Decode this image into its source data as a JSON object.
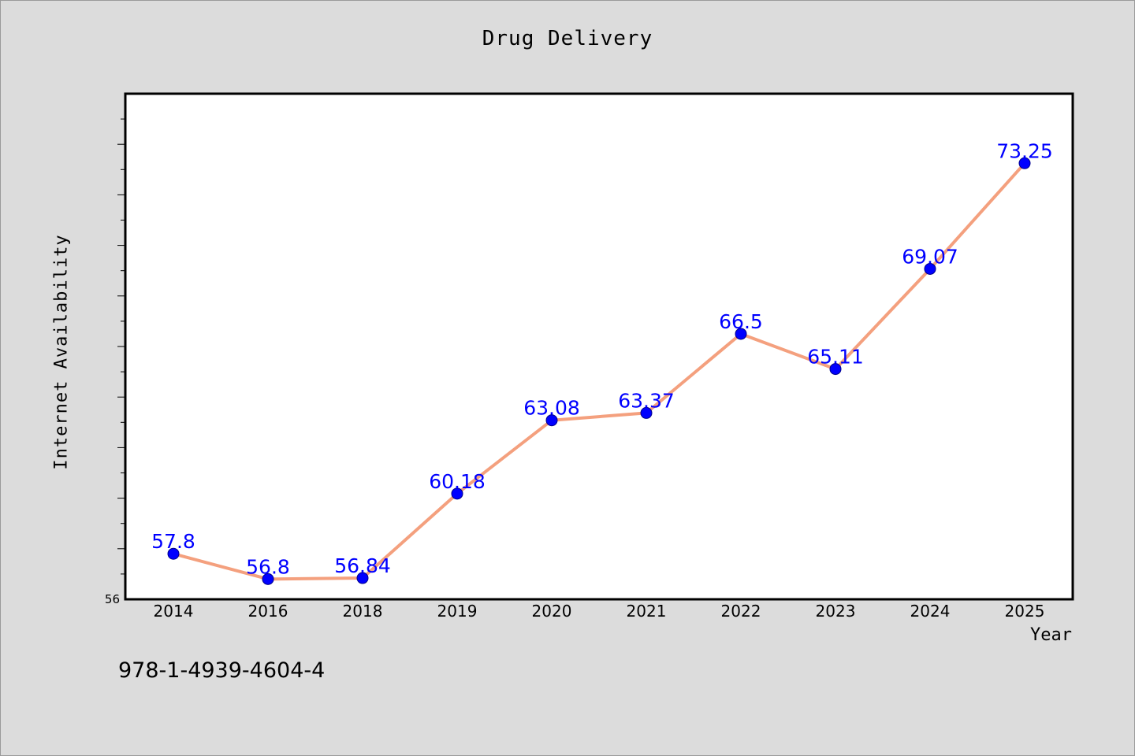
{
  "chart_data": {
    "type": "line",
    "title": "Drug Delivery",
    "xlabel": "Year",
    "ylabel": "Internet Availability",
    "categories": [
      "2014",
      "2016",
      "2018",
      "2019",
      "2020",
      "2021",
      "2022",
      "2023",
      "2024",
      "2025"
    ],
    "series": [
      {
        "values": [
          57.8,
          56.8,
          56.84,
          60.18,
          63.08,
          63.37,
          66.5,
          65.11,
          69.07,
          73.25
        ],
        "labels": [
          "57.8",
          "56.8",
          "56.84",
          "60.18",
          "63.08",
          "63.37",
          "66.5",
          "65.11",
          "69.07",
          "73.25"
        ]
      }
    ],
    "y_tick_labels": [
      "56"
    ],
    "ylim": [
      56,
      76
    ],
    "grid": false,
    "legend": "none",
    "colors": {
      "line": "#f4a07e",
      "marker": "#0000ff",
      "data_label": "#0000ff",
      "plot_background": "#ffffff",
      "page_background": "#dcdcdc"
    }
  },
  "footer": {
    "isbn": "978-1-4939-4604-4"
  }
}
